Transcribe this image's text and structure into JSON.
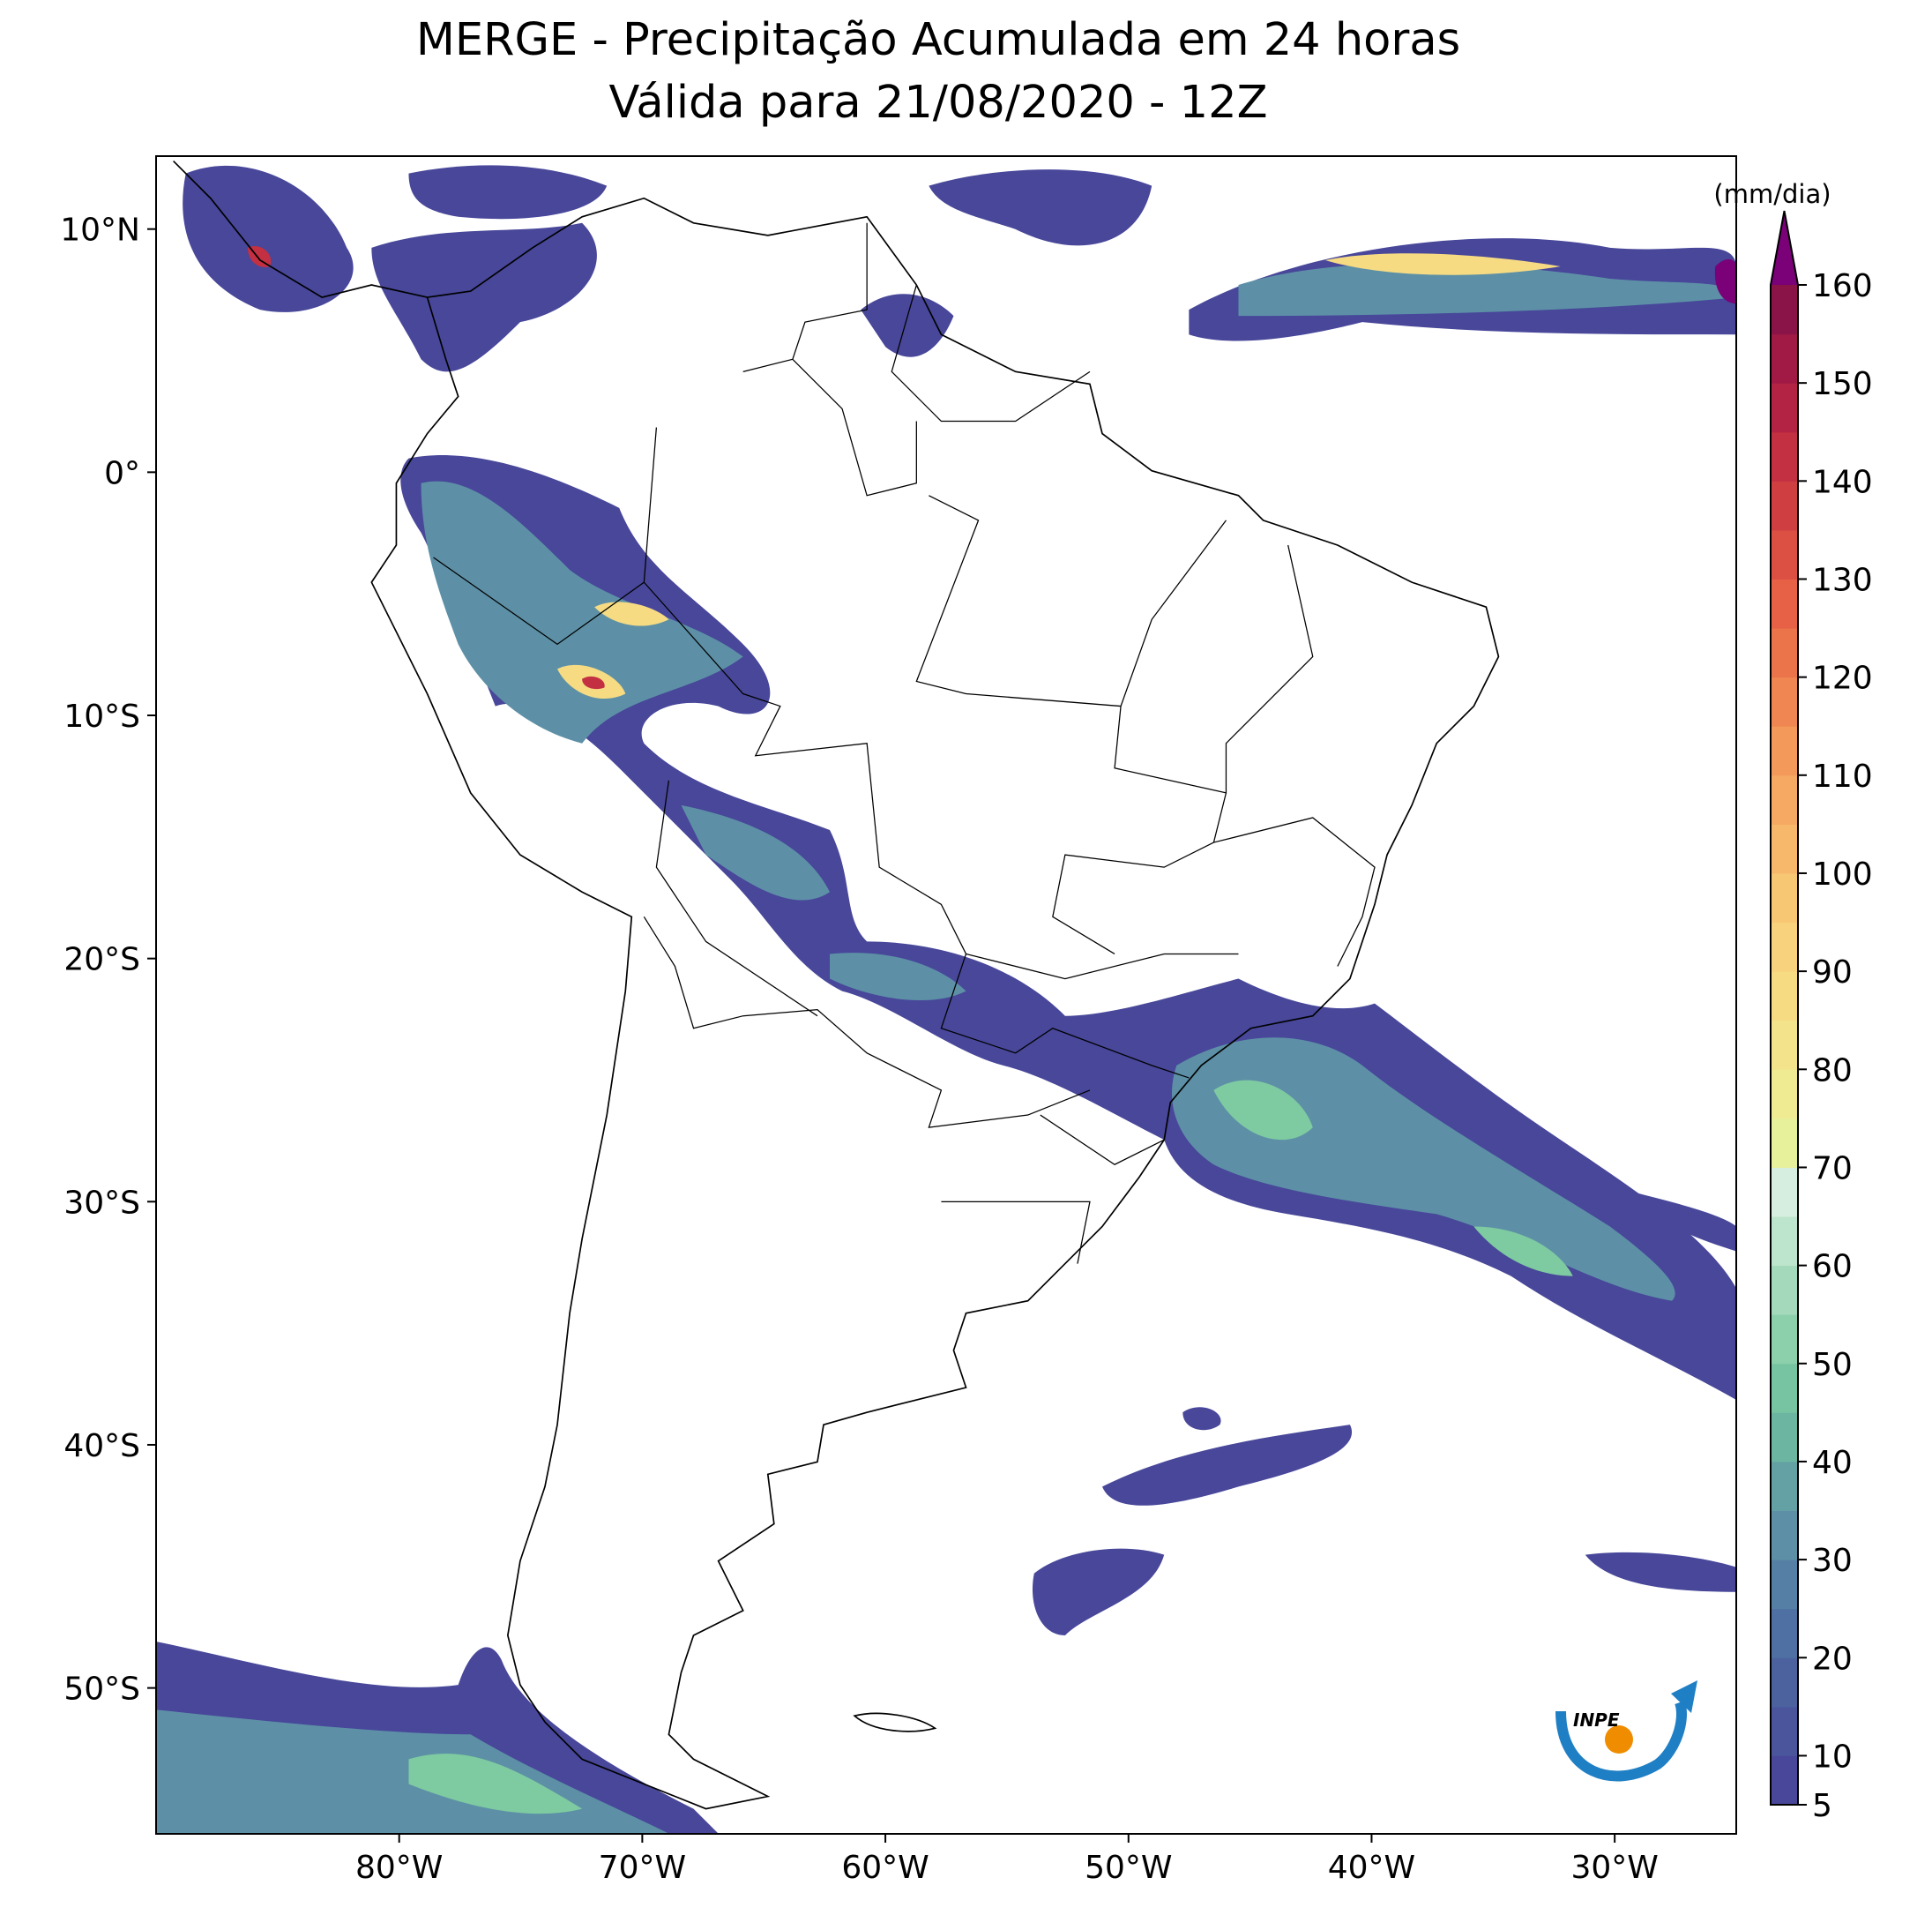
{
  "title": "MERGE - Precipitação Acumulada em 24 horas",
  "subtitle": "Válida para 21/08/2020 - 12Z",
  "map": {
    "xlim": [
      -90,
      -25
    ],
    "ylim": [
      -56,
      13
    ],
    "xticks": [
      {
        "value": -80,
        "label": "80°W"
      },
      {
        "value": -70,
        "label": "70°W"
      },
      {
        "value": -60,
        "label": "60°W"
      },
      {
        "value": -50,
        "label": "50°W"
      },
      {
        "value": -40,
        "label": "40°W"
      },
      {
        "value": -30,
        "label": "30°W"
      }
    ],
    "yticks": [
      {
        "value": 10,
        "label": "10°N"
      },
      {
        "value": 0,
        "label": "0°"
      },
      {
        "value": -10,
        "label": "10°S"
      },
      {
        "value": -20,
        "label": "20°S"
      },
      {
        "value": -30,
        "label": "30°S"
      },
      {
        "value": -40,
        "label": "40°S"
      },
      {
        "value": -50,
        "label": "50°S"
      }
    ]
  },
  "colorbar": {
    "label": "(mm/dia)",
    "range": [
      5,
      160
    ],
    "ticks": [
      5,
      10,
      20,
      30,
      40,
      50,
      60,
      70,
      80,
      90,
      100,
      110,
      120,
      130,
      140,
      150,
      160
    ],
    "colors": [
      "#48479a",
      "#4a559c",
      "#4c629f",
      "#4f70a2",
      "#557fa5",
      "#5d90a6",
      "#63a1a4",
      "#6cb5a1",
      "#76c4a2",
      "#8ccfab",
      "#a4dabb",
      "#bde4cc",
      "#d6eedf",
      "#e7f09a",
      "#eeeb92",
      "#f3e48b",
      "#f6db83",
      "#f8d27c",
      "#f8c774",
      "#f7b86b",
      "#f5a962",
      "#f39a5a",
      "#f08752",
      "#ec744b",
      "#e66146",
      "#dc5043",
      "#cf3f42",
      "#c23042",
      "#b32343",
      "#a01a45",
      "#8a1448"
    ],
    "extend_color": "#7a0177"
  },
  "logo": "INPE"
}
